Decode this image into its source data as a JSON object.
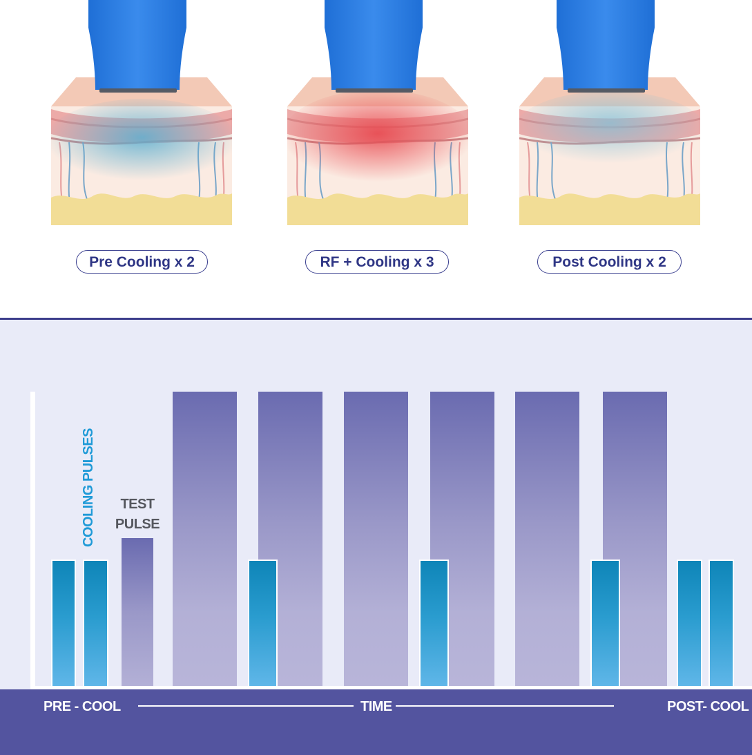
{
  "stages": [
    {
      "label": "Pre Cooling x 2",
      "glow": "#5aaed0"
    },
    {
      "label": "RF + Cooling x 3",
      "glow": "#e8484f"
    },
    {
      "label": "Post Cooling x 2",
      "glow": "#7fc0d8"
    }
  ],
  "chart": {
    "cooling_label": "COOLING PULSES",
    "test_label_line1": "TEST",
    "test_label_line2": "PULSE",
    "axis_left": "PRE - COOL",
    "axis_center": "TIME",
    "axis_right": "POST- COOL"
  },
  "colors": {
    "device_blue": "#2e7de0",
    "rf_bar": "#6a6bb0",
    "cooling_bar": "#1f9ad7",
    "footer": "#53549f",
    "chart_bg": "#e9ebf8"
  }
}
